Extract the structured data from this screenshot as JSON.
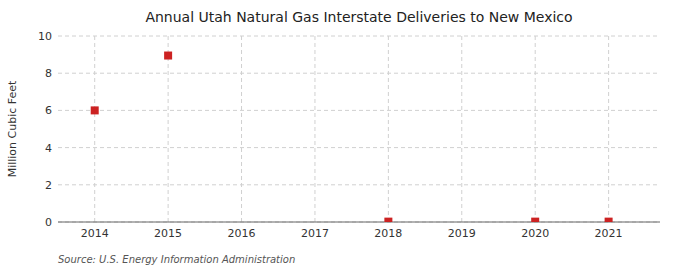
{
  "chart_data": {
    "type": "scatter",
    "title": "Annual Utah Natural Gas Interstate Deliveries to New Mexico",
    "ylabel": "Million Cubic Feet",
    "source": "Source: U.S. Energy Information Administration",
    "x": [
      2014,
      2015,
      2018,
      2020,
      2021
    ],
    "values": [
      6.0,
      8.95,
      0.02,
      0.02,
      0.02
    ],
    "color": "#cc2222",
    "marker": "square",
    "xlim": [
      2013.5,
      2021.7
    ],
    "ylim": [
      0,
      10
    ],
    "xticks": [
      2014,
      2015,
      2016,
      2017,
      2018,
      2019,
      2020,
      2021
    ],
    "yticks": [
      0,
      2,
      4,
      6,
      8,
      10
    ],
    "grid": true
  }
}
